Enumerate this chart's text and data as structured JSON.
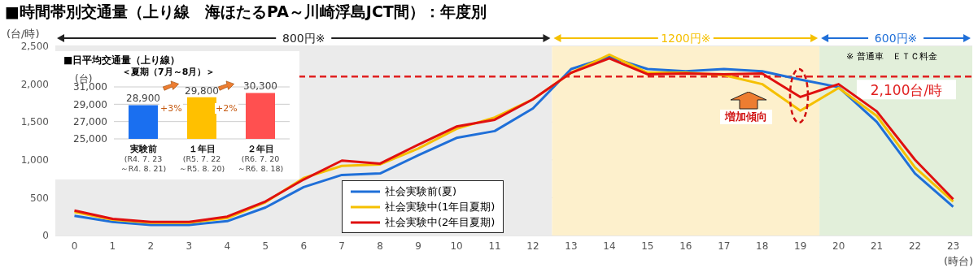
{
  "chart_data": [
    {
      "type": "line",
      "title": "■時間帯別交通量（上り線　海ほたるPA～川崎浮島JCT間）：年度別",
      "ylabel": "(台/時)",
      "xlabel": "(時台)",
      "x": [
        0,
        1,
        2,
        3,
        4,
        5,
        6,
        7,
        8,
        9,
        10,
        11,
        12,
        13,
        14,
        15,
        16,
        17,
        18,
        19,
        20,
        21,
        22,
        23
      ],
      "series": [
        {
          "name": "社会実験前(夏)",
          "color": "#1f6fd8",
          "values": [
            260,
            180,
            140,
            140,
            190,
            370,
            640,
            800,
            820,
            1060,
            1290,
            1380,
            1680,
            2200,
            2360,
            2200,
            2170,
            2200,
            2170,
            2060,
            1960,
            1500,
            820,
            380
          ]
        },
        {
          "name": "社会実験中(1年目夏期)",
          "color": "#f5c000",
          "values": [
            310,
            210,
            170,
            170,
            230,
            440,
            760,
            920,
            940,
            1150,
            1410,
            1560,
            1800,
            2150,
            2390,
            2150,
            2150,
            2120,
            2000,
            1650,
            1950,
            1580,
            900,
            450
          ]
        },
        {
          "name": "社会実験中(2年目夏期)",
          "color": "#e01010",
          "values": [
            330,
            220,
            180,
            180,
            250,
            450,
            740,
            990,
            950,
            1200,
            1440,
            1530,
            1800,
            2150,
            2340,
            2130,
            2140,
            2130,
            2140,
            1830,
            2000,
            1640,
            1000,
            480
          ]
        }
      ],
      "xlim": [
        -0.5,
        23.5
      ],
      "xticks": [
        0,
        1,
        2,
        3,
        4,
        5,
        6,
        7,
        8,
        9,
        10,
        11,
        12,
        13,
        14,
        15,
        16,
        17,
        18,
        19,
        20,
        21,
        22,
        23
      ],
      "ylim": [
        0,
        2500
      ],
      "yticks": [
        {
          "value": 0,
          "label": "0"
        },
        {
          "value": 500,
          "label": "500"
        },
        {
          "value": 1000,
          "label": "1,000"
        },
        {
          "value": 1500,
          "label": "1,500"
        },
        {
          "value": 2000,
          "label": "2,000"
        },
        {
          "value": 2500,
          "label": "2,500"
        }
      ],
      "grid": "y",
      "legend": "bottom",
      "line_style": "solid",
      "marker": "none",
      "ref_lines": [
        {
          "axis": "y",
          "value": 2100,
          "label": "2,100台/時",
          "color": "#e02020",
          "line_style": "dashed"
        }
      ],
      "bands": [
        {
          "axis": "x",
          "from": -0.5,
          "to": 12.5,
          "label": "800円※",
          "color": "#ebebeb"
        },
        {
          "axis": "x",
          "from": 12.5,
          "to": 19.5,
          "label": "1200円※",
          "color": "#fdf0cc"
        },
        {
          "axis": "x",
          "from": 19.5,
          "to": 23.5,
          "label": "600円※",
          "color": "#e2efda"
        }
      ],
      "annotations": [
        "※ 普通車　ＥＴＣ料金",
        "増加傾向"
      ]
    },
    {
      "type": "bar",
      "title": "■日平均交通量（上り線）",
      "subtitle": "＜夏期（7月～8月）＞",
      "ylabel": "(台)",
      "categories": [
        "実験前\n(R4. 7. 23\n～R4. 8. 21)",
        "１年目\n(R5. 7. 22\n～R5. 8. 20)",
        "２年目\n(R6. 7. 20\n～R6. 8. 18)"
      ],
      "values": [
        28900,
        29800,
        30300
      ],
      "colors": [
        "#1a6ff0",
        "#ffc000",
        "#ff5050"
      ],
      "ylim": [
        25000,
        31000
      ],
      "yticks": [
        {
          "value": 25000,
          "label": "25,000"
        },
        {
          "value": 27000,
          "label": "27,000"
        },
        {
          "value": 29000,
          "label": "29,000"
        },
        {
          "value": 31000,
          "label": "31,000"
        }
      ],
      "grid": "y",
      "value_labels": [
        "28,900",
        "29,800",
        "30,300"
      ],
      "annotations": [
        "+3%",
        "+2%"
      ]
    }
  ]
}
